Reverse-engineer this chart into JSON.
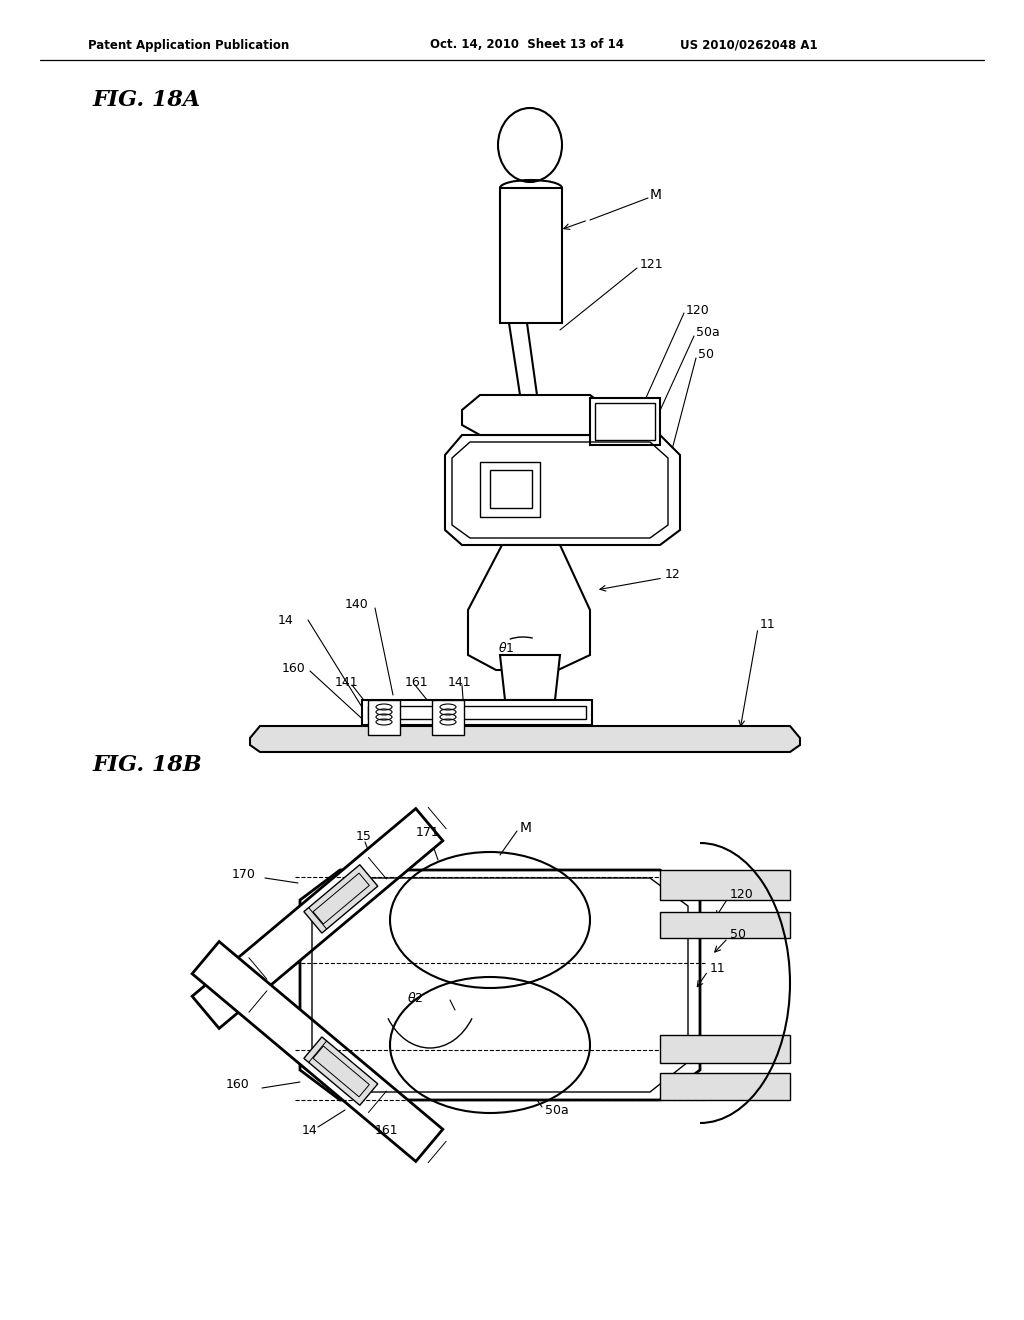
{
  "background_color": "#ffffff",
  "header_left": "Patent Application Publication",
  "header_mid": "Oct. 14, 2010  Sheet 13 of 14",
  "header_right": "US 2010/0262048 A1",
  "fig18a_title": "FIG. 18A",
  "fig18b_title": "FIG. 18B",
  "line_color": "#000000",
  "light_gray": "#e0e0e0",
  "mid_gray": "#cccccc"
}
